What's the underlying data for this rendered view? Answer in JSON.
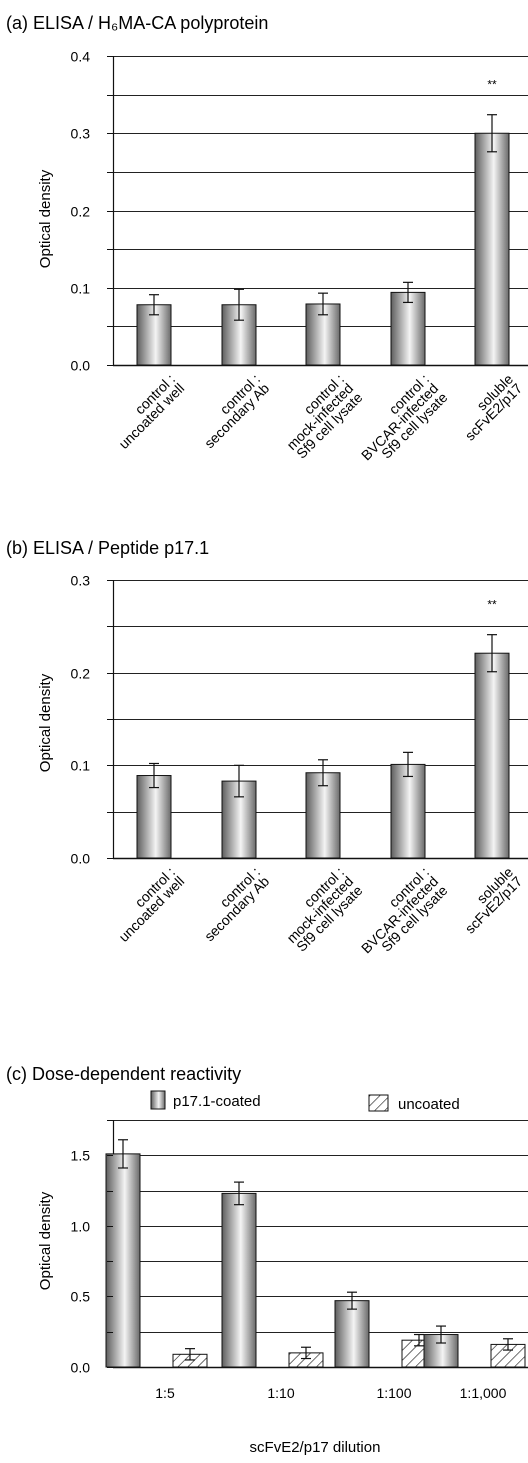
{
  "chart_data": [
    {
      "id": "a",
      "type": "bar",
      "title": "(a) ELISA / H₆MA-CA polyprotein",
      "ylabel": "Optical density",
      "ylim": [
        0,
        0.4
      ],
      "yticks": [
        "0.0",
        "0.1",
        "0.2",
        "0.3",
        "0.4"
      ],
      "grid": true,
      "categories": [
        "control : uncoated well",
        "control : secondary Ab",
        "control : mock-infected Sf9 cell lysate",
        "control : BV-CAR-infected Sf9 cell lysate",
        "soluble scFvE2/p17"
      ],
      "category_lines": [
        [
          "control :",
          "uncoated well"
        ],
        [
          "control :",
          "secondary Ab"
        ],
        [
          "control :",
          "mock-infected",
          "Sf9 cell lysate"
        ],
        [
          "control :",
          "BVCAR-infected",
          "Sf9 cell lysate"
        ],
        [
          "soluble",
          "scFvE2/p17"
        ]
      ],
      "values": [
        0.078,
        0.078,
        0.079,
        0.094,
        0.3
      ],
      "errors": [
        0.013,
        0.02,
        0.014,
        0.013,
        0.024
      ],
      "annotations": [
        {
          "category_index": 4,
          "text": "**"
        }
      ]
    },
    {
      "id": "b",
      "type": "bar",
      "title": "(b) ELISA / Peptide p17.1",
      "ylabel": "Optical density",
      "ylim": [
        0,
        0.3
      ],
      "yticks": [
        "0.0",
        "0.1",
        "0.2",
        "0.3"
      ],
      "grid": true,
      "categories": [
        "control : uncoated well",
        "control : secondary Ab",
        "control : mock-infected Sf9 cell lysate",
        "control : BV-CAR-infected Sf9 cell lysate",
        "soluble scFvE2/p17"
      ],
      "category_lines": [
        [
          "control :",
          "uncoated well"
        ],
        [
          "control :",
          "secondary Ab"
        ],
        [
          "control :",
          "mock-infected",
          "Sf9 cell lysate"
        ],
        [
          "control :",
          "BVCAR-infected",
          "Sf9 cell lysate"
        ],
        [
          "soluble",
          "scFvE2/p17"
        ]
      ],
      "values": [
        0.089,
        0.083,
        0.092,
        0.101,
        0.221
      ],
      "errors": [
        0.013,
        0.017,
        0.014,
        0.013,
        0.02
      ],
      "annotations": [
        {
          "category_index": 4,
          "text": "**"
        }
      ]
    },
    {
      "id": "c",
      "type": "bar",
      "title": "(c) Dose-dependent reactivity",
      "xlabel": "scFvE2/p17 dilution",
      "ylabel": "Optical density",
      "ylim": [
        0,
        1.75
      ],
      "yticks": [
        "0.0",
        "0.5",
        "1.0",
        "1.5"
      ],
      "grid": true,
      "legend_position": "top",
      "categories": [
        "1:5",
        "1:10",
        "1:100",
        "1:1,000"
      ],
      "series": [
        {
          "name": "p17.1-coated",
          "values": [
            1.51,
            1.23,
            0.47,
            0.23
          ],
          "errors": [
            0.1,
            0.08,
            0.06,
            0.06
          ],
          "fill": "gradient"
        },
        {
          "name": "uncoated",
          "values": [
            0.09,
            0.1,
            0.19,
            0.16
          ],
          "errors": [
            0.04,
            0.04,
            0.04,
            0.04
          ],
          "fill": "hatch"
        }
      ]
    }
  ],
  "colors": {
    "axis": "#111111",
    "grid": "#222222",
    "bar_dark": "#5a5a5a",
    "bar_light": "#f2f2f2"
  }
}
